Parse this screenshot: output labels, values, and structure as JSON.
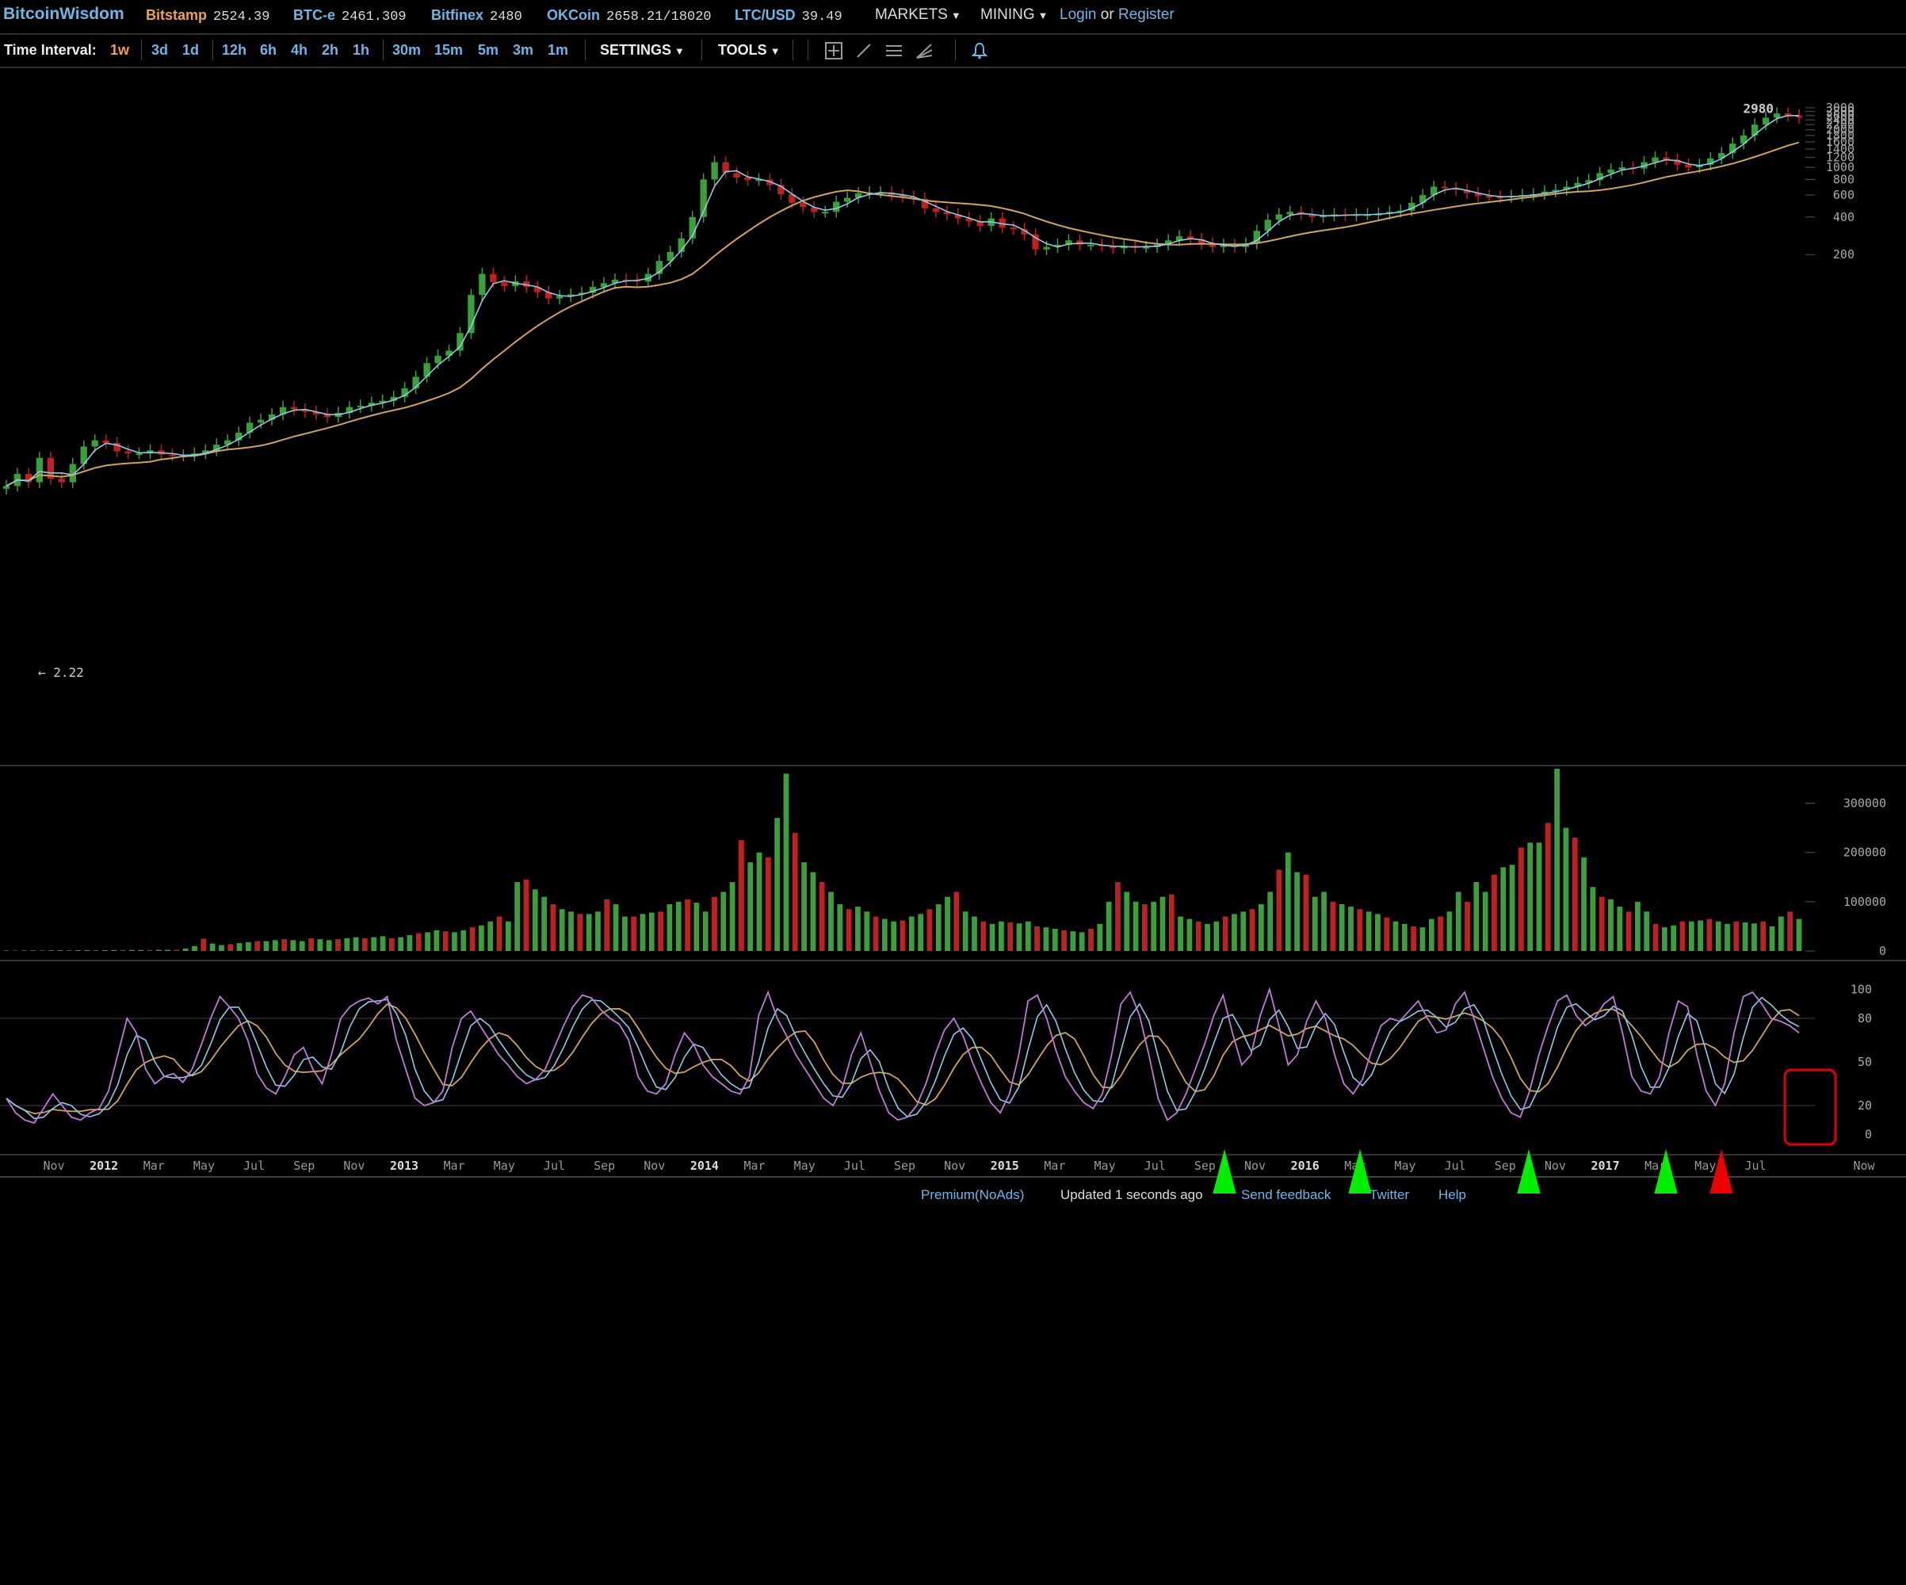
{
  "header": {
    "logo": "BitcoinWisdom",
    "tickers": [
      {
        "name": "Bitstamp",
        "price": "2524.39",
        "color": "#f0a340"
      },
      {
        "name": "BTC-e",
        "price": "2461.309",
        "color": "#6cb7e8"
      },
      {
        "name": "Bitfinex",
        "price": "2480",
        "color": "#6cb7e8"
      },
      {
        "name": "OKCoin",
        "price": "2658.21/18020",
        "color": "#6cb7e8"
      },
      {
        "name": "LTC/USD",
        "price": "39.49",
        "color": "#6cb7e8"
      }
    ],
    "markets_label": "MARKETS",
    "mining_label": "MINING",
    "login_label": "Login",
    "or_label": "or",
    "register_label": "Register"
  },
  "toolbar": {
    "time_interval_label": "Time Interval:",
    "intervals": [
      "1w",
      "3d",
      "1d",
      "12h",
      "6h",
      "4h",
      "2h",
      "1h",
      "30m",
      "15m",
      "5m",
      "3m",
      "1m"
    ],
    "active_interval": "1w",
    "settings_label": "SETTINGS",
    "tools_label": "TOOLS",
    "tool_icons": [
      "crosshair-icon",
      "line-icon",
      "horizontal-lines-icon",
      "fan-icon",
      "bell-icon"
    ]
  },
  "footer": {
    "premium_link": "Premium(NoAds)",
    "updated_text": "Updated 1 seconds ago",
    "feedback_link": "Send feedback",
    "twitter_link": "Twitter",
    "help_link": "Help"
  },
  "chart_data": {
    "type": "candlestick",
    "price_axis": {
      "scale": "log",
      "ticks": [
        "3000",
        "2800",
        "2600",
        "2400",
        "2200",
        "2000",
        "1800",
        "1600",
        "1400",
        "1200",
        "1000",
        "800",
        "600",
        "400",
        "200"
      ]
    },
    "price_annotations": {
      "high_label": "2980",
      "low_label": "← 2.22"
    },
    "x_axis_labels": [
      "Nov",
      "2012",
      "Mar",
      "May",
      "Jul",
      "Sep",
      "Nov",
      "2013",
      "Mar",
      "May",
      "Jul",
      "Sep",
      "Nov",
      "2014",
      "Mar",
      "May",
      "Jul",
      "Sep",
      "Nov",
      "2015",
      "Mar",
      "May",
      "Jul",
      "Sep",
      "Nov",
      "2016",
      "Mar",
      "May",
      "Jul",
      "Sep",
      "Nov",
      "2017",
      "Mar",
      "May",
      "Jul",
      "Now"
    ],
    "bold_axis_labels": [
      "2012",
      "2013",
      "2014",
      "2015",
      "2016",
      "2017"
    ],
    "price_weekly_close_usd": [
      2.8,
      3.5,
      3.0,
      4.7,
      3.2,
      3.0,
      4.2,
      5.8,
      6.5,
      6.2,
      5.3,
      5.1,
      5.1,
      5.4,
      5.0,
      4.9,
      4.9,
      5.1,
      5.4,
      6.0,
      6.5,
      7.5,
      9.0,
      9.5,
      10.5,
      12.0,
      11.5,
      11.0,
      10.5,
      10.0,
      10.8,
      12.0,
      12.3,
      13.0,
      13.5,
      14.5,
      17.0,
      21.0,
      27.0,
      31.0,
      34.0,
      47.0,
      95.0,
      140.0,
      120.0,
      112.0,
      122.0,
      110.0,
      100.0,
      89.0,
      93.0,
      96.0,
      99.0,
      110.0,
      118.0,
      126.0,
      125.0,
      122.0,
      140.0,
      178.0,
      210.0,
      270.0,
      400.0,
      800.0,
      1100.0,
      900.0,
      830.0,
      790.0,
      800.0,
      720.0,
      610.0,
      520.0,
      480.0,
      440.0,
      440.0,
      530.0,
      570.0,
      620.0,
      630.0,
      630.0,
      600.0,
      580.0,
      560.0,
      470.0,
      440.0,
      420.0,
      390.0,
      370.0,
      340.0,
      390.0,
      330.0,
      320.0,
      290.0,
      220.0,
      230.0,
      240.0,
      260.0,
      240.0,
      240.0,
      235.0,
      225.0,
      235.0,
      230.0,
      230.0,
      240.0,
      260.0,
      280.0,
      265.0,
      245.0,
      230.0,
      240.0,
      230.0,
      245.0,
      310.0,
      380.0,
      420.0,
      440.0,
      420.0,
      400.0,
      410.0,
      420.0,
      410.0,
      420.0,
      420.0,
      425.0,
      440.0,
      450.0,
      520.0,
      600.0,
      700.0,
      680.0,
      660.0,
      620.0,
      590.0,
      580.0,
      575.0,
      590.0,
      600.0,
      610.0,
      640.0,
      660.0,
      700.0,
      750.0,
      790.0,
      900.0,
      960.0,
      1000.0,
      980.0,
      1100.0,
      1200.0,
      1150.0,
      1050.0,
      1000.0,
      1050.0,
      1180.0,
      1300.0,
      1550.0,
      1800.0,
      2200.0,
      2500.0,
      2700.0,
      2600.0,
      2500.0
    ],
    "volume_axis": {
      "ticks": [
        0,
        100000,
        200000,
        300000
      ]
    },
    "volume_weekly": [
      1000,
      1100,
      1100,
      1200,
      1300,
      1300,
      1400,
      1500,
      1500,
      1600,
      1700,
      1700,
      1800,
      1900,
      2000,
      2000,
      2100,
      2200,
      2300,
      2300,
      5000,
      10000,
      25000,
      15000,
      12000,
      14000,
      16000,
      18000,
      20000,
      20000,
      22000,
      24000,
      22000,
      20000,
      26000,
      24000,
      22000,
      24000,
      26000,
      28000,
      26000,
      28000,
      30000,
      26000,
      28000,
      32000,
      36000,
      38000,
      42000,
      40000,
      38000,
      42000,
      48000,
      52000,
      60000,
      70000,
      60000,
      140000,
      145000,
      125000,
      110000,
      95000,
      85000,
      80000,
      75000,
      75000,
      80000,
      105000,
      95000,
      70000,
      70000,
      75000,
      78000,
      80000,
      95000,
      100000,
      105000,
      98000,
      80000,
      110000,
      120000,
      140000,
      225000,
      180000,
      200000,
      190000,
      270000,
      360000,
      240000,
      180000,
      160000,
      140000,
      120000,
      95000,
      85000,
      90000,
      80000,
      70000,
      65000,
      60000,
      62000,
      70000,
      75000,
      85000,
      95000,
      110000,
      120000,
      80000,
      70000,
      60000,
      55000,
      60000,
      58000,
      56000,
      60000,
      50000,
      48000,
      45000,
      42000,
      40000,
      38000,
      45000,
      55000,
      100000,
      140000,
      120000,
      100000,
      95000,
      100000,
      110000,
      115000,
      70000,
      65000,
      60000,
      55000,
      60000,
      70000,
      75000,
      80000,
      85000,
      95000,
      120000,
      165000,
      200000,
      160000,
      155000,
      110000,
      120000,
      100000,
      95000,
      90000,
      85000,
      80000,
      75000,
      68000,
      60000,
      55000,
      50000,
      48000,
      65000,
      70000,
      80000,
      120000,
      100000,
      140000,
      120000,
      155000,
      170000,
      175000,
      210000,
      220000,
      220000,
      260000,
      370000,
      250000,
      230000,
      190000,
      130000,
      110000,
      105000,
      90000,
      80000,
      100000,
      80000,
      55000,
      48000,
      52000,
      60000,
      60000,
      62000,
      65000,
      60000,
      55000,
      60000,
      58000,
      56000,
      60000,
      50000,
      70000,
      80000,
      65000
    ],
    "stochastic_axis": {
      "ticks": [
        0,
        20,
        50,
        80,
        100
      ]
    },
    "stochastic_k": [
      25,
      15,
      10,
      8,
      18,
      28,
      20,
      12,
      10,
      15,
      18,
      30,
      55,
      80,
      70,
      45,
      35,
      40,
      42,
      36,
      45,
      62,
      80,
      95,
      88,
      80,
      65,
      42,
      32,
      28,
      40,
      55,
      60,
      45,
      35,
      55,
      80,
      88,
      92,
      94,
      90,
      95,
      65,
      45,
      25,
      20,
      22,
      30,
      60,
      80,
      85,
      75,
      65,
      55,
      48,
      40,
      35,
      38,
      45,
      60,
      75,
      88,
      96,
      94,
      86,
      80,
      76,
      65,
      40,
      30,
      28,
      35,
      55,
      70,
      62,
      48,
      40,
      35,
      30,
      28,
      40,
      82,
      98,
      80,
      68,
      55,
      45,
      35,
      25,
      20,
      32,
      55,
      70,
      50,
      30,
      15,
      10,
      12,
      20,
      35,
      55,
      72,
      80,
      68,
      50,
      35,
      22,
      15,
      28,
      55,
      92,
      96,
      80,
      58,
      40,
      30,
      22,
      18,
      28,
      55,
      90,
      98,
      82,
      55,
      25,
      10,
      15,
      28,
      45,
      62,
      82,
      96,
      70,
      48,
      55,
      82,
      100,
      75,
      48,
      55,
      78,
      92,
      80,
      55,
      35,
      28,
      38,
      58,
      75,
      80,
      78,
      85,
      92,
      80,
      70,
      72,
      90,
      98,
      80,
      60,
      40,
      25,
      15,
      12,
      30,
      55,
      75,
      92,
      96,
      82,
      75,
      80,
      90,
      95,
      70,
      40,
      30,
      28,
      40,
      70,
      92,
      88,
      55,
      30,
      20,
      35,
      70,
      95,
      98,
      90,
      80,
      78,
      75,
      70
    ],
    "annotations": {
      "green_arrows": 4,
      "red_arrows": 1,
      "red_box": true
    }
  }
}
